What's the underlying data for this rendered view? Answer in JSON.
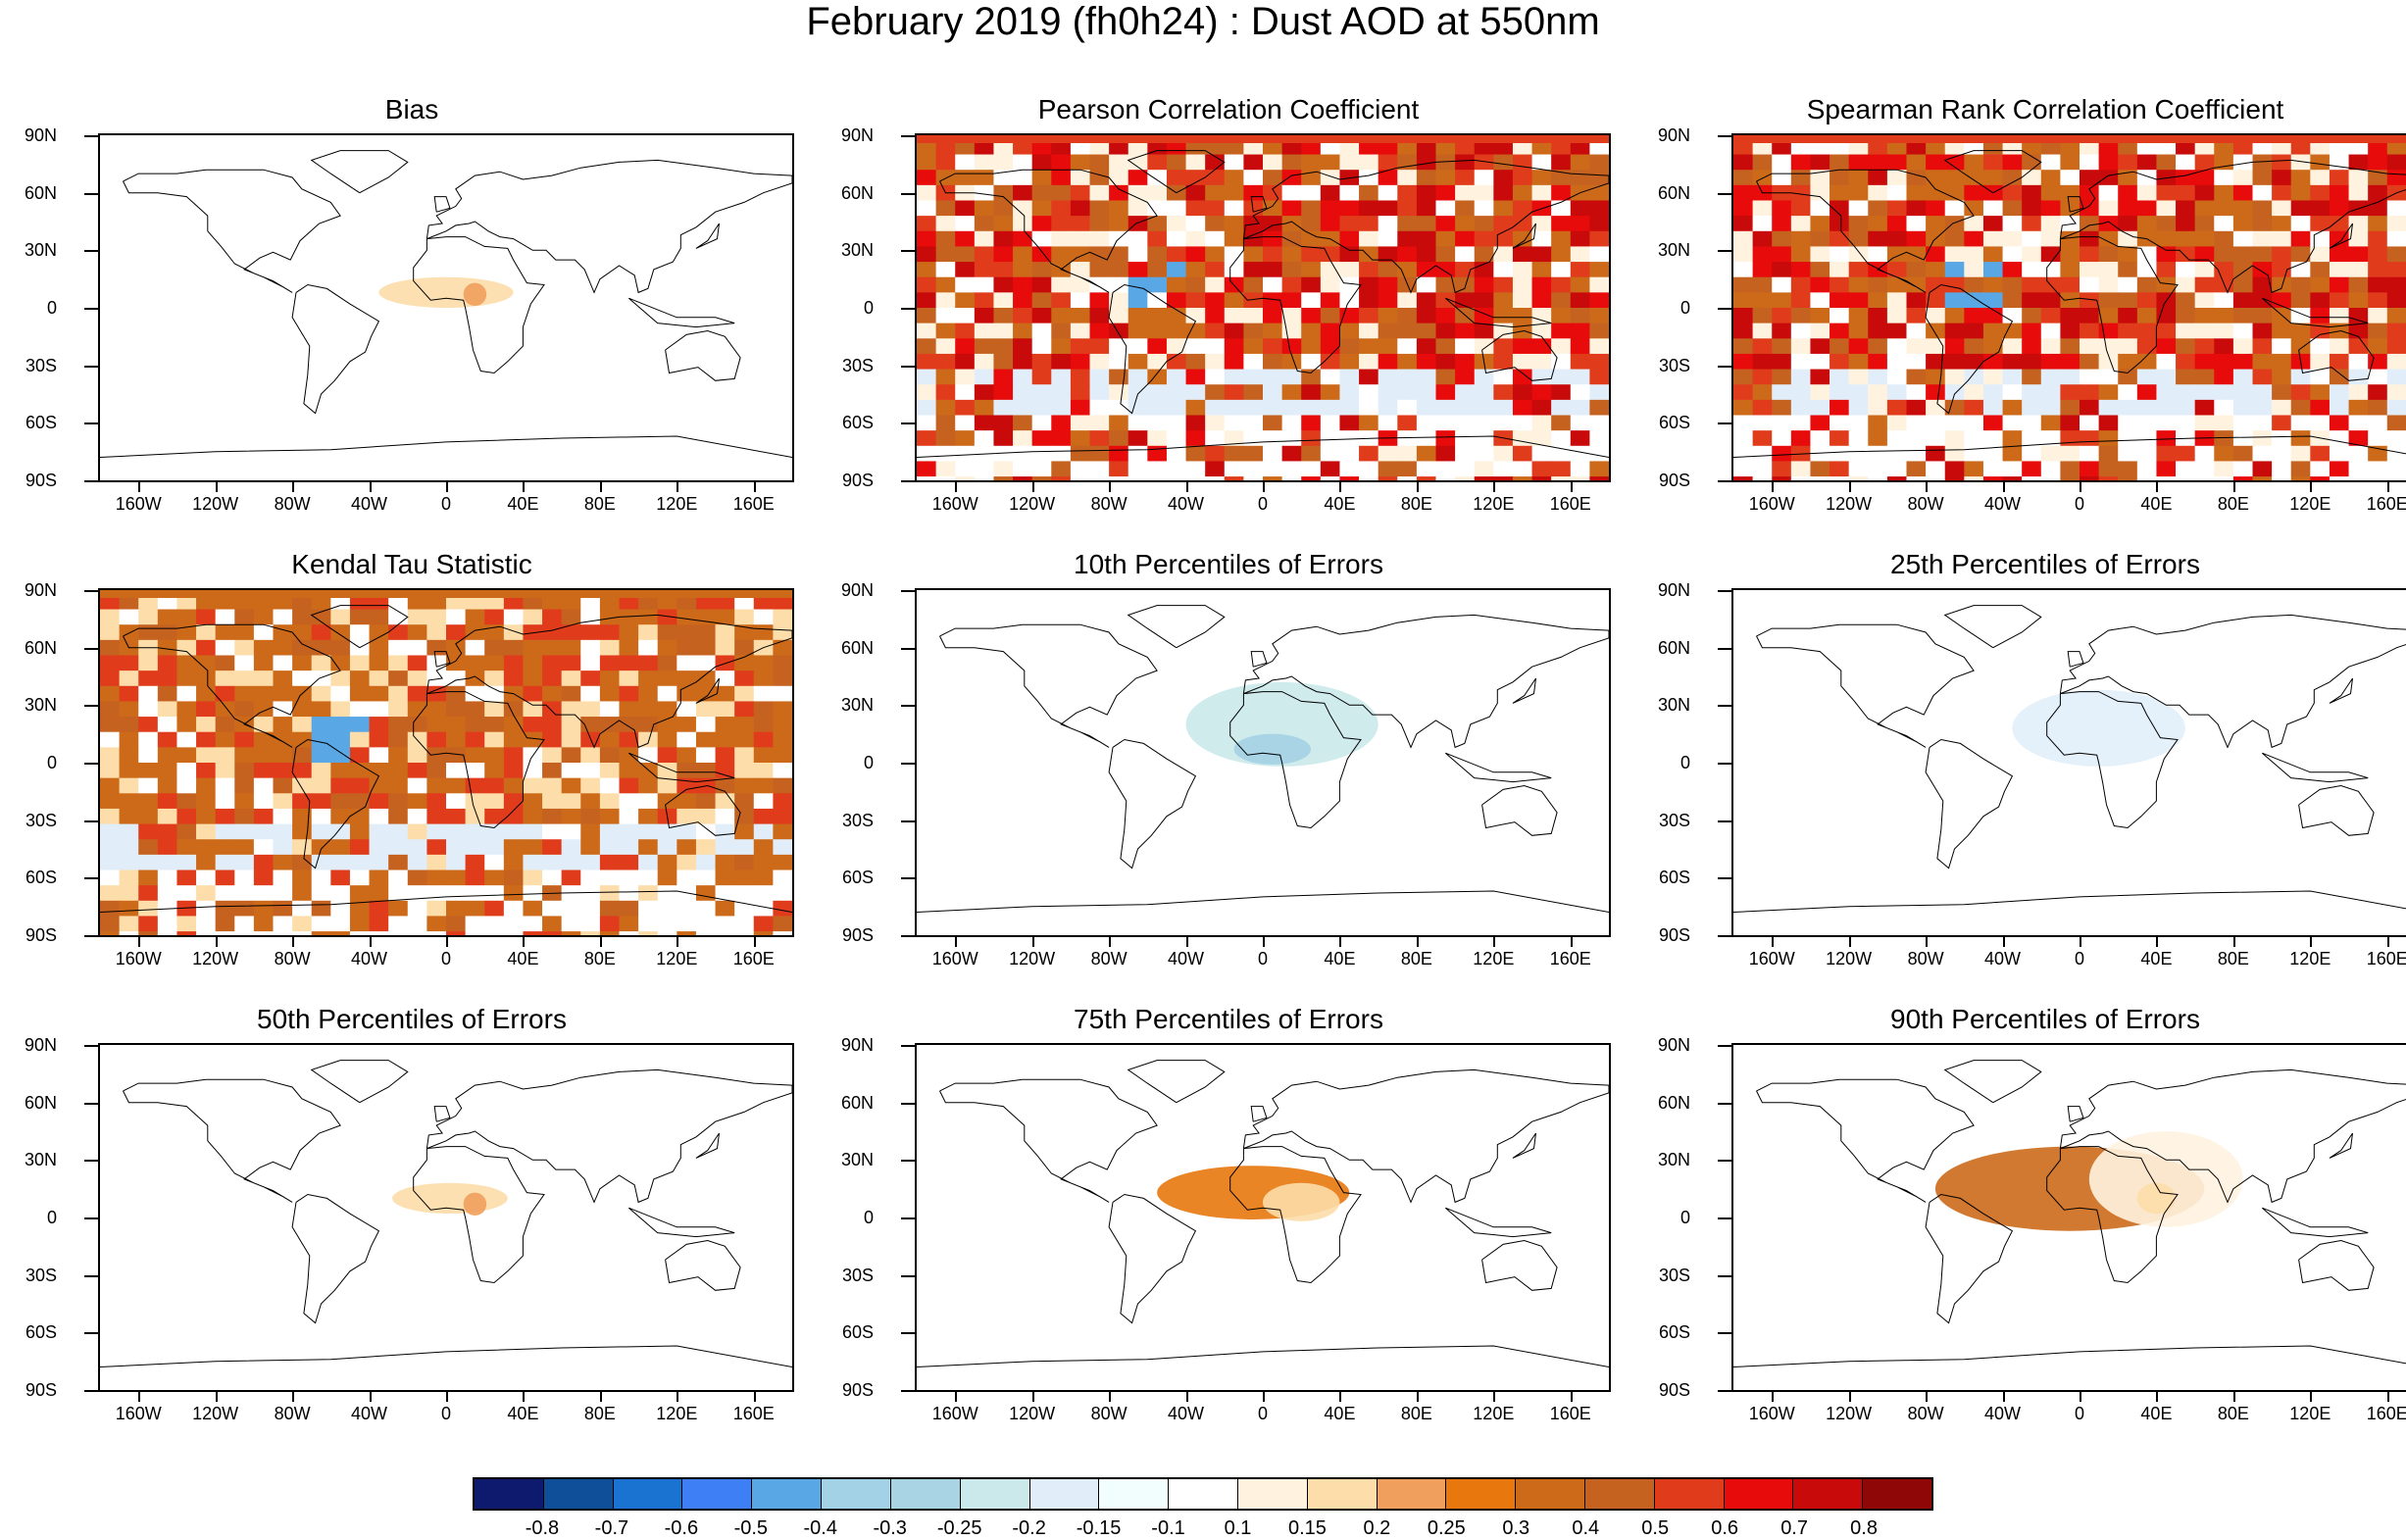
{
  "figure": {
    "title": "February 2019 (fh0h24) : Dust AOD at 550nm"
  },
  "axes": {
    "lat_labels": [
      "90N",
      "60N",
      "30N",
      "0",
      "30S",
      "60S",
      "90S"
    ],
    "lon_labels": [
      "160W",
      "120W",
      "80W",
      "40W",
      "0",
      "40E",
      "80E",
      "120E",
      "160E"
    ]
  },
  "colorbar": {
    "labels": [
      "-0.8",
      "-0.7",
      "-0.6",
      "-0.5",
      "-0.4",
      "-0.3",
      "-0.25",
      "-0.2",
      "-0.15",
      "-0.1",
      "0.1",
      "0.15",
      "0.2",
      "0.25",
      "0.3",
      "0.4",
      "0.5",
      "0.6",
      "0.7",
      "0.8"
    ],
    "colors": [
      "#0d1a6e",
      "#0f4f9a",
      "#1a72d1",
      "#3f7ff5",
      "#5aa7e6",
      "#a3d2e6",
      "#a8d4e4",
      "#cbe9ea",
      "#e1eefa",
      "#f2fdfd",
      "#ffffff",
      "#fff3e0",
      "#fdddaa",
      "#f0a05c",
      "#e8780e",
      "#cc6a1a",
      "#c66220",
      "#e03c1c",
      "#e80b0b",
      "#c80a0a",
      "#8f0707"
    ]
  },
  "panels": [
    {
      "title": "Bias",
      "fields": [
        {
          "lat": 8,
          "lon": 0,
          "w": 35,
          "h": 8,
          "color": "#fdddaa"
        },
        {
          "lat": 7,
          "lon": 15,
          "w": 6,
          "h": 6,
          "color": "#f0a05c"
        }
      ]
    },
    {
      "title": "Pearson Correlation Coefficient",
      "fields": []
    },
    {
      "title": "Spearman Rank Correlation Coefficient",
      "fields": []
    },
    {
      "title": "Kendal Tau Statistic",
      "fields": []
    },
    {
      "title": "10th Percentiles of Errors",
      "fields": [
        {
          "lat": 20,
          "lon": 10,
          "w": 50,
          "h": 22,
          "color": "#cbe9ea"
        },
        {
          "lat": 7,
          "lon": 5,
          "w": 20,
          "h": 8,
          "color": "#a3d2e6"
        }
      ]
    },
    {
      "title": "25th Percentiles of Errors",
      "fields": [
        {
          "lat": 18,
          "lon": 10,
          "w": 45,
          "h": 20,
          "color": "#e1eefa"
        }
      ]
    },
    {
      "title": "50th Percentiles of Errors",
      "fields": [
        {
          "lat": 10,
          "lon": 2,
          "w": 30,
          "h": 8,
          "color": "#fdddaa"
        },
        {
          "lat": 7,
          "lon": 15,
          "w": 6,
          "h": 6,
          "color": "#f0a05c"
        }
      ]
    },
    {
      "title": "75th Percentiles of Errors",
      "fields": [
        {
          "lat": 13,
          "lon": -5,
          "w": 50,
          "h": 14,
          "color": "#e8780e"
        },
        {
          "lat": 8,
          "lon": 20,
          "w": 20,
          "h": 10,
          "color": "#fdddaa"
        }
      ]
    },
    {
      "title": "90th Percentiles of Errors",
      "fields": [
        {
          "lat": 15,
          "lon": -5,
          "w": 70,
          "h": 22,
          "color": "#cc6a1a"
        },
        {
          "lat": 20,
          "lon": 45,
          "w": 40,
          "h": 25,
          "color": "#fff3e0"
        },
        {
          "lat": 10,
          "lon": 40,
          "w": 10,
          "h": 8,
          "color": "#fdddaa"
        }
      ]
    }
  ]
}
